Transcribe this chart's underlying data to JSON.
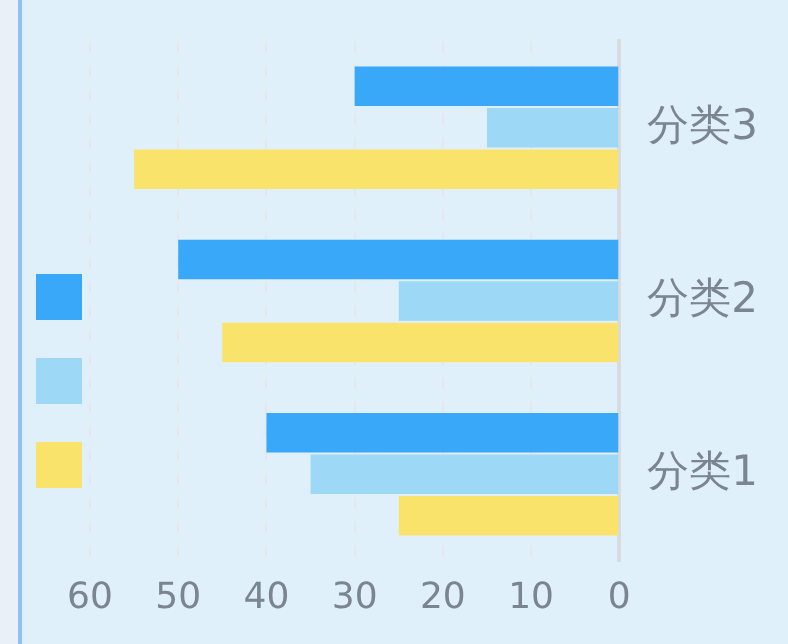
{
  "chart_data": {
    "type": "bar",
    "orientation": "horizontal",
    "categories": [
      "分类3",
      "分类2",
      "分类1"
    ],
    "series": [
      {
        "color": "#3aa8f8",
        "values": [
          30,
          50,
          40
        ]
      },
      {
        "color": "#9dd8f6",
        "values": [
          15,
          25,
          35
        ]
      },
      {
        "color": "#fae36a",
        "values": [
          55,
          45,
          25
        ]
      }
    ],
    "xlim": [
      60,
      0
    ],
    "xticks": [
      0,
      10,
      20,
      30,
      40,
      50,
      60
    ],
    "grid": "x"
  }
}
